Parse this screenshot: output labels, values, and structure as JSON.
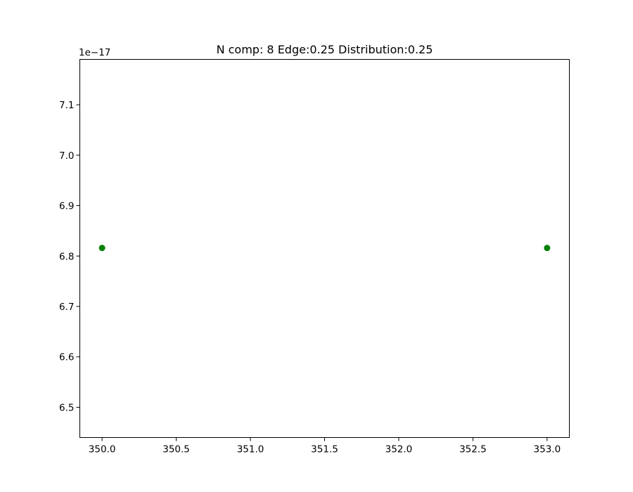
{
  "chart_data": {
    "type": "scatter",
    "title": "N comp: 8 Edge:0.25 Distribution:0.25",
    "xlabel": "",
    "ylabel": "",
    "xlim": [
      349.85,
      353.15
    ],
    "ylim": [
      6.44,
      7.19
    ],
    "y_offset_text": "1e−17",
    "x_ticks": [
      350.0,
      350.5,
      351.0,
      351.5,
      352.0,
      352.5,
      353.0
    ],
    "x_tick_labels": [
      "350.0",
      "350.5",
      "351.0",
      "351.5",
      "352.0",
      "352.5",
      "353.0"
    ],
    "y_ticks": [
      6.5,
      6.6,
      6.7,
      6.8,
      6.9,
      7.0,
      7.1
    ],
    "y_tick_labels": [
      "6.5",
      "6.6",
      "6.7",
      "6.8",
      "6.9",
      "7.0",
      "7.1"
    ],
    "grid": false,
    "series": [
      {
        "color": "#008000",
        "marker": "circle",
        "x": [
          350.0,
          353.0
        ],
        "y": [
          6.816,
          6.816
        ]
      }
    ]
  }
}
